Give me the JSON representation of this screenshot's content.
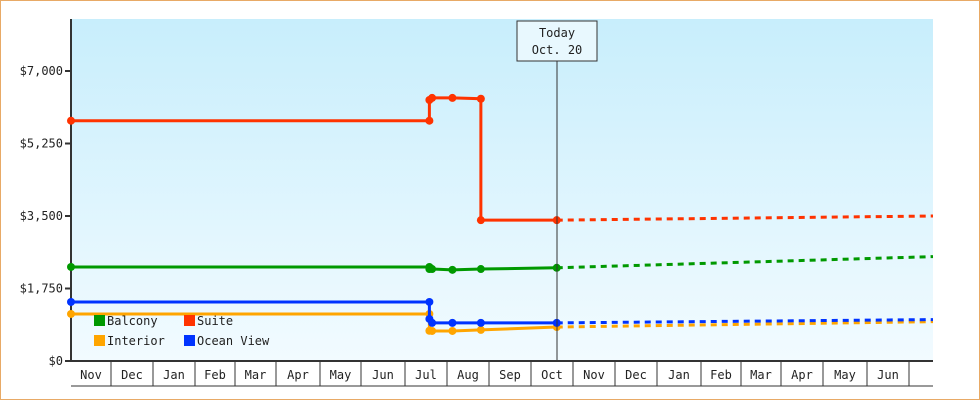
{
  "chart_data": {
    "type": "line",
    "title": "",
    "xlabel": "",
    "ylabel": "",
    "ylim": [
      0,
      8200
    ],
    "yticks": [
      "$0",
      "$1,750",
      "$3,500",
      "$5,250",
      "$7,000"
    ],
    "ytick_values": [
      0,
      1750,
      3500,
      5250,
      7000
    ],
    "xticks": [
      "Nov",
      "Dec",
      "Jan",
      "Feb",
      "Mar",
      "Apr",
      "May",
      "Jun",
      "Jul",
      "Aug",
      "Sep",
      "Oct",
      "Nov",
      "Dec",
      "Jan",
      "Feb",
      "Mar",
      "Apr",
      "May",
      "Jun"
    ],
    "xrange": [
      "2012-11-01",
      "2013-07-01"
    ],
    "today": {
      "line1": "Today",
      "line2": "Oct. 20",
      "date": "2012-10-20"
    },
    "grid": false,
    "legend_placement": "bottom-left",
    "series": [
      {
        "name": "Balcony",
        "color": "#009900",
        "points": [
          [
            "2011-11-01",
            2270
          ],
          [
            "2012-07-19",
            2270
          ],
          [
            "2012-07-19",
            2220
          ],
          [
            "2012-07-21",
            2220
          ],
          [
            "2012-08-05",
            2200
          ],
          [
            "2012-08-26",
            2220
          ],
          [
            "2012-10-20",
            2250
          ]
        ],
        "forecast": [
          [
            "2012-10-20",
            2250
          ],
          [
            "2013-07-20",
            2520
          ]
        ]
      },
      {
        "name": "Suite",
        "color": "#ff3300",
        "points": [
          [
            "2011-11-01",
            5800
          ],
          [
            "2012-07-19",
            5800
          ],
          [
            "2012-07-19",
            6300
          ],
          [
            "2012-07-21",
            6350
          ],
          [
            "2012-08-05",
            6350
          ],
          [
            "2012-08-26",
            6330
          ],
          [
            "2012-08-26",
            3400
          ],
          [
            "2012-10-20",
            3400
          ]
        ],
        "forecast": [
          [
            "2012-10-20",
            3400
          ],
          [
            "2013-07-20",
            3500
          ]
        ]
      },
      {
        "name": "Interior",
        "color": "#ffa500",
        "points": [
          [
            "2011-11-01",
            1135
          ],
          [
            "2012-07-19",
            1135
          ],
          [
            "2012-07-19",
            730
          ],
          [
            "2012-07-21",
            725
          ],
          [
            "2012-08-05",
            725
          ],
          [
            "2012-08-26",
            750
          ],
          [
            "2012-10-20",
            820
          ]
        ],
        "forecast": [
          [
            "2012-10-20",
            820
          ],
          [
            "2013-07-20",
            950
          ]
        ]
      },
      {
        "name": "Ocean View",
        "color": "#0033ff",
        "points": [
          [
            "2011-11-01",
            1425
          ],
          [
            "2012-07-19",
            1425
          ],
          [
            "2012-07-19",
            1015
          ],
          [
            "2012-07-21",
            920
          ],
          [
            "2012-08-05",
            920
          ],
          [
            "2012-08-26",
            920
          ],
          [
            "2012-10-20",
            920
          ]
        ],
        "forecast": [
          [
            "2012-10-20",
            920
          ],
          [
            "2013-07-20",
            1000
          ]
        ]
      }
    ],
    "legend_order": [
      "Balcony",
      "Suite",
      "Interior",
      "Ocean View"
    ]
  }
}
